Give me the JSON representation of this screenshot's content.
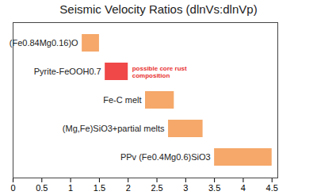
{
  "chart_data": {
    "type": "bar",
    "orientation": "horizontal",
    "title": "Seismic Velocity Ratios (dlnVs:dlnVp)",
    "categories": [
      "(Fe0.84Mg0.16)O",
      "Pyrite-FeOOH0.7",
      "Fe-C melt",
      "(Mg,Fe)SiO3+partial melts",
      "PPv (Fe0.4Mg0.6)SiO3"
    ],
    "values": [
      [
        1.2,
        1.5
      ],
      [
        1.6,
        2.0
      ],
      [
        2.3,
        2.8
      ],
      [
        2.7,
        3.3
      ],
      [
        3.5,
        4.5
      ]
    ],
    "colors": [
      "#f5a86a",
      "#f04848",
      "#f5a86a",
      "#f5a86a",
      "#f5a86a"
    ],
    "annotation": {
      "text": "possible core rust\ncomposition",
      "category": "Pyrite-FeOOH0.7",
      "color": "#e8302f"
    },
    "xlim": [
      0,
      4.6
    ],
    "xticks": [
      0,
      0.5,
      1,
      1.5,
      2,
      2.5,
      3,
      3.5,
      4,
      4.5
    ],
    "tick_labels": "x",
    "grid": false
  }
}
